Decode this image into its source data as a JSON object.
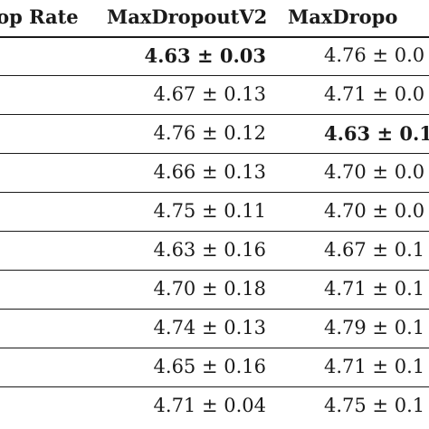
{
  "table": {
    "headers": [
      "rop Rate",
      "MaxDropoutV2",
      "MaxDropo"
    ],
    "rows": [
      {
        "maxdropoutv2": "4.63 ± 0.03",
        "maxdropout": "4.76 ± 0.0",
        "bold_col": 1
      },
      {
        "maxdropoutv2": "4.67 ± 0.13",
        "maxdropout": "4.71 ± 0.0",
        "bold_col": 0
      },
      {
        "maxdropoutv2": "4.76 ± 0.12",
        "maxdropout": "4.63 ± 0.1",
        "bold_col": 2
      },
      {
        "maxdropoutv2": "4.66 ± 0.13",
        "maxdropout": "4.70 ± 0.0",
        "bold_col": 0
      },
      {
        "maxdropoutv2": "4.75 ± 0.11",
        "maxdropout": "4.70 ± 0.0",
        "bold_col": 0
      },
      {
        "maxdropoutv2": "4.63 ± 0.16",
        "maxdropout": "4.67 ± 0.1",
        "bold_col": 0
      },
      {
        "maxdropoutv2": "4.70 ± 0.18",
        "maxdropout": "4.71 ± 0.1",
        "bold_col": 0
      },
      {
        "maxdropoutv2": "4.74 ± 0.13",
        "maxdropout": "4.79 ± 0.1",
        "bold_col": 0
      },
      {
        "maxdropoutv2": "4.65 ± 0.16",
        "maxdropout": "4.71 ± 0.1",
        "bold_col": 0
      },
      {
        "maxdropoutv2": "4.71 ± 0.04",
        "maxdropout": "4.75 ± 0.1",
        "bold_col": 0
      }
    ]
  }
}
